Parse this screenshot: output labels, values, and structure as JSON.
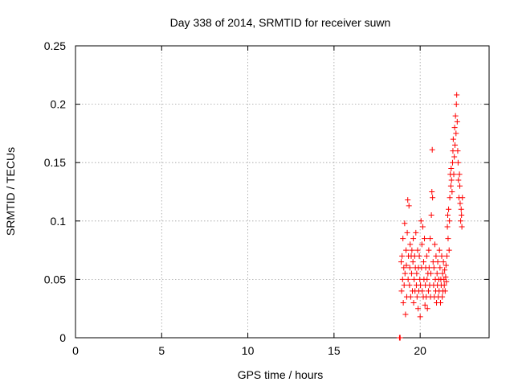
{
  "chart_data": {
    "type": "scatter",
    "title": "Day 338 of 2014, SRMTID for receiver suwn",
    "xlabel": "GPS time / hours",
    "ylabel": "SRMTID / TECUs",
    "xlim": [
      0,
      24
    ],
    "ylim": [
      0,
      0.25
    ],
    "x_ticks": [
      "0",
      "5",
      "10",
      "15",
      "20"
    ],
    "y_ticks": [
      "0",
      "0.05",
      "0.1",
      "0.15",
      "0.2",
      "0.25"
    ],
    "grid": true,
    "marker": "plus",
    "point_color": "#ff0000",
    "series": [
      {
        "points": [
          [
            18.8,
            0.0
          ],
          [
            18.82,
            0.0
          ],
          [
            18.84,
            0.0
          ],
          [
            18.9,
            0.065
          ],
          [
            18.92,
            0.04
          ],
          [
            18.95,
            0.07
          ],
          [
            18.98,
            0.05
          ],
          [
            19.0,
            0.085
          ],
          [
            19.02,
            0.03
          ],
          [
            19.05,
            0.06
          ],
          [
            19.07,
            0.045
          ],
          [
            19.1,
            0.098
          ],
          [
            19.12,
            0.055
          ],
          [
            19.15,
            0.02
          ],
          [
            19.18,
            0.075
          ],
          [
            19.2,
            0.062
          ],
          [
            19.22,
            0.035
          ],
          [
            19.25,
            0.09
          ],
          [
            19.28,
            0.118
          ],
          [
            19.3,
            0.05
          ],
          [
            19.32,
            0.07
          ],
          [
            19.35,
            0.113
          ],
          [
            19.38,
            0.045
          ],
          [
            19.4,
            0.06
          ],
          [
            19.42,
            0.08
          ],
          [
            19.45,
            0.035
          ],
          [
            19.48,
            0.07
          ],
          [
            19.5,
            0.055
          ],
          [
            19.52,
            0.075
          ],
          [
            19.55,
            0.04
          ],
          [
            19.58,
            0.065
          ],
          [
            19.6,
            0.085
          ],
          [
            19.62,
            0.03
          ],
          [
            19.65,
            0.05
          ],
          [
            19.68,
            0.07
          ],
          [
            19.7,
            0.04
          ],
          [
            19.72,
            0.06
          ],
          [
            19.75,
            0.09
          ],
          [
            19.78,
            0.045
          ],
          [
            19.8,
            0.055
          ],
          [
            19.82,
            0.035
          ],
          [
            19.85,
            0.075
          ],
          [
            19.88,
            0.025
          ],
          [
            19.9,
            0.06
          ],
          [
            19.92,
            0.04
          ],
          [
            19.95,
            0.07
          ],
          [
            19.98,
            0.05
          ],
          [
            20.0,
            0.018
          ],
          [
            20.02,
            0.045
          ],
          [
            20.05,
            0.1
          ],
          [
            20.08,
            0.06
          ],
          [
            20.1,
            0.08
          ],
          [
            20.12,
            0.04
          ],
          [
            20.15,
            0.095
          ],
          [
            20.18,
            0.035
          ],
          [
            20.2,
            0.065
          ],
          [
            20.22,
            0.05
          ],
          [
            20.25,
            0.085
          ],
          [
            20.28,
            0.028
          ],
          [
            20.3,
            0.045
          ],
          [
            20.32,
            0.06
          ],
          [
            20.35,
            0.035
          ],
          [
            20.38,
            0.07
          ],
          [
            20.4,
            0.05
          ],
          [
            20.42,
            0.025
          ],
          [
            20.45,
            0.055
          ],
          [
            20.48,
            0.04
          ],
          [
            20.5,
            0.075
          ],
          [
            20.52,
            0.06
          ],
          [
            20.55,
            0.045
          ],
          [
            20.58,
            0.085
          ],
          [
            20.6,
            0.035
          ],
          [
            20.62,
            0.055
          ],
          [
            20.65,
            0.105
          ],
          [
            20.68,
            0.125
          ],
          [
            20.7,
            0.161
          ],
          [
            20.72,
            0.12
          ],
          [
            20.75,
            0.065
          ],
          [
            20.78,
            0.045
          ],
          [
            20.8,
            0.06
          ],
          [
            20.82,
            0.035
          ],
          [
            20.85,
            0.08
          ],
          [
            20.88,
            0.05
          ],
          [
            20.9,
            0.04
          ],
          [
            20.92,
            0.07
          ],
          [
            20.95,
            0.03
          ],
          [
            20.98,
            0.055
          ],
          [
            21.0,
            0.045
          ],
          [
            21.02,
            0.065
          ],
          [
            21.05,
            0.035
          ],
          [
            21.08,
            0.05
          ],
          [
            21.1,
            0.04
          ],
          [
            21.12,
            0.075
          ],
          [
            21.15,
            0.06
          ],
          [
            21.18,
            0.03
          ],
          [
            21.2,
            0.05
          ],
          [
            21.22,
            0.045
          ],
          [
            21.25,
            0.07
          ],
          [
            21.28,
            0.035
          ],
          [
            21.3,
            0.055
          ],
          [
            21.32,
            0.04
          ],
          [
            21.35,
            0.065
          ],
          [
            21.38,
            0.05
          ],
          [
            21.4,
            0.045
          ],
          [
            21.42,
            0.058
          ],
          [
            21.45,
            0.04
          ],
          [
            21.48,
            0.052
          ],
          [
            21.5,
            0.062
          ],
          [
            21.52,
            0.048
          ],
          [
            21.55,
            0.07
          ],
          [
            21.58,
            0.095
          ],
          [
            21.6,
            0.105
          ],
          [
            21.62,
            0.085
          ],
          [
            21.65,
            0.11
          ],
          [
            21.68,
            0.075
          ],
          [
            21.7,
            0.1
          ],
          [
            21.72,
            0.12
          ],
          [
            21.75,
            0.14
          ],
          [
            21.78,
            0.13
          ],
          [
            21.8,
            0.145
          ],
          [
            21.82,
            0.135
          ],
          [
            21.85,
            0.125
          ],
          [
            21.88,
            0.15
          ],
          [
            21.9,
            0.16
          ],
          [
            21.92,
            0.17
          ],
          [
            21.95,
            0.14
          ],
          [
            21.98,
            0.155
          ],
          [
            22.0,
            0.18
          ],
          [
            22.02,
            0.165
          ],
          [
            22.05,
            0.19
          ],
          [
            22.08,
            0.175
          ],
          [
            22.1,
            0.2
          ],
          [
            22.12,
            0.208
          ],
          [
            22.15,
            0.185
          ],
          [
            22.18,
            0.16
          ],
          [
            22.2,
            0.15
          ],
          [
            22.22,
            0.135
          ],
          [
            22.25,
            0.12
          ],
          [
            22.28,
            0.14
          ],
          [
            22.3,
            0.13
          ],
          [
            22.32,
            0.115
          ],
          [
            22.35,
            0.1
          ],
          [
            22.38,
            0.11
          ],
          [
            22.4,
            0.105
          ],
          [
            22.42,
            0.095
          ],
          [
            22.45,
            0.12
          ]
        ]
      }
    ]
  }
}
